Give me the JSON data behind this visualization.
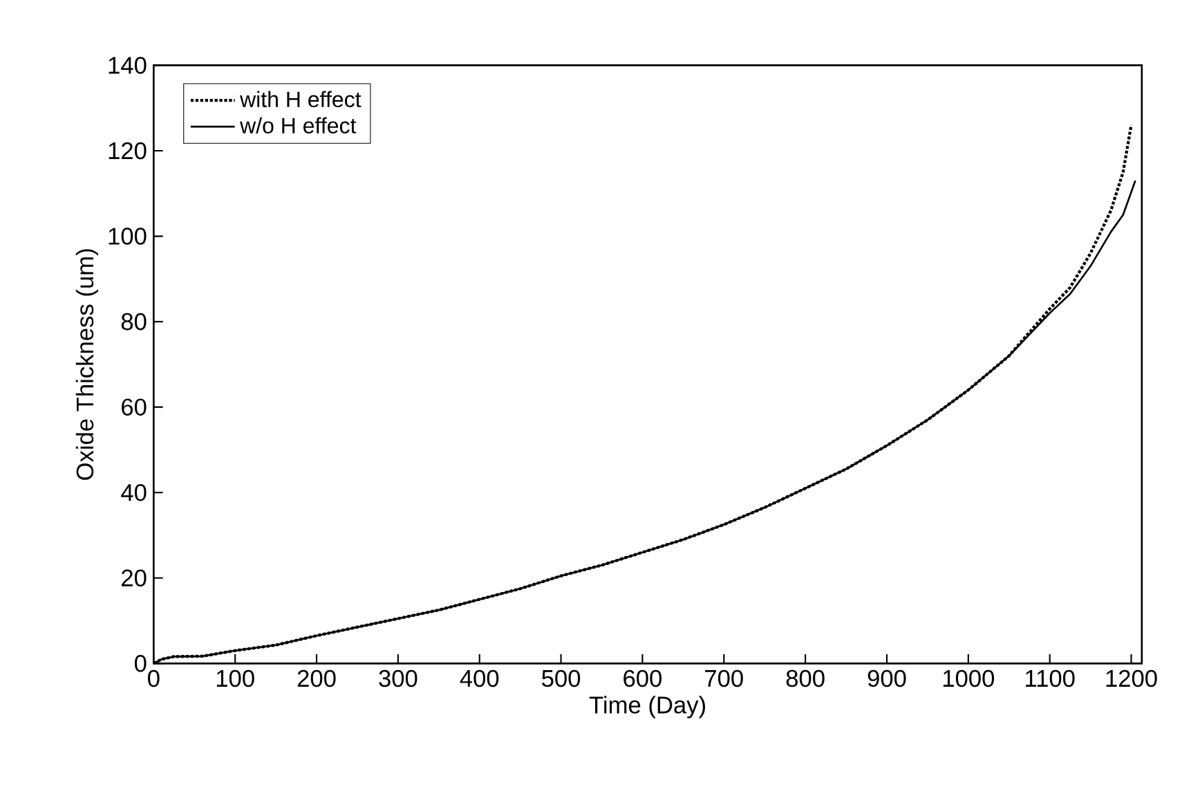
{
  "chart_data": {
    "type": "line",
    "xlabel": "Time (Day)",
    "ylabel": "Oxide Thickness (um)",
    "xlim": [
      0,
      1213
    ],
    "xticks": [
      0,
      100,
      200,
      300,
      400,
      500,
      600,
      700,
      800,
      900,
      1000,
      1100,
      1200
    ],
    "ylim": [
      0,
      140
    ],
    "yticks": [
      0,
      20,
      40,
      60,
      80,
      100,
      120,
      140
    ],
    "legend": "top left",
    "grid": false,
    "marker": "none",
    "series": [
      {
        "name": "with H effect",
        "color": "#000000",
        "line_style": "dotted",
        "x": [
          0,
          10,
          25,
          60,
          100,
          150,
          200,
          250,
          300,
          350,
          400,
          450,
          500,
          550,
          600,
          650,
          700,
          750,
          800,
          850,
          900,
          950,
          1000,
          1050,
          1100,
          1125,
          1150,
          1175,
          1190,
          1200
        ],
        "values": [
          0,
          1,
          1.6,
          1.7,
          3,
          4.3,
          6.5,
          8.5,
          10.5,
          12.5,
          15,
          17.5,
          20.5,
          23,
          26,
          29,
          32.5,
          36.5,
          41,
          45.5,
          51,
          57,
          64,
          72,
          83,
          88,
          96,
          106,
          115,
          126
        ]
      },
      {
        "name": "w/o H effect",
        "color": "#000000",
        "line_style": "solid",
        "x": [
          0,
          10,
          25,
          60,
          100,
          150,
          200,
          250,
          300,
          350,
          400,
          450,
          500,
          550,
          600,
          650,
          700,
          750,
          800,
          850,
          900,
          950,
          1000,
          1050,
          1100,
          1125,
          1150,
          1175,
          1190,
          1205
        ],
        "values": [
          0,
          1,
          1.6,
          1.7,
          3,
          4.3,
          6.5,
          8.5,
          10.5,
          12.5,
          15,
          17.5,
          20.5,
          23,
          26,
          29,
          32.5,
          36.5,
          41,
          45.5,
          51,
          57,
          64,
          72,
          82,
          86.5,
          93,
          101,
          105,
          113
        ]
      }
    ]
  }
}
